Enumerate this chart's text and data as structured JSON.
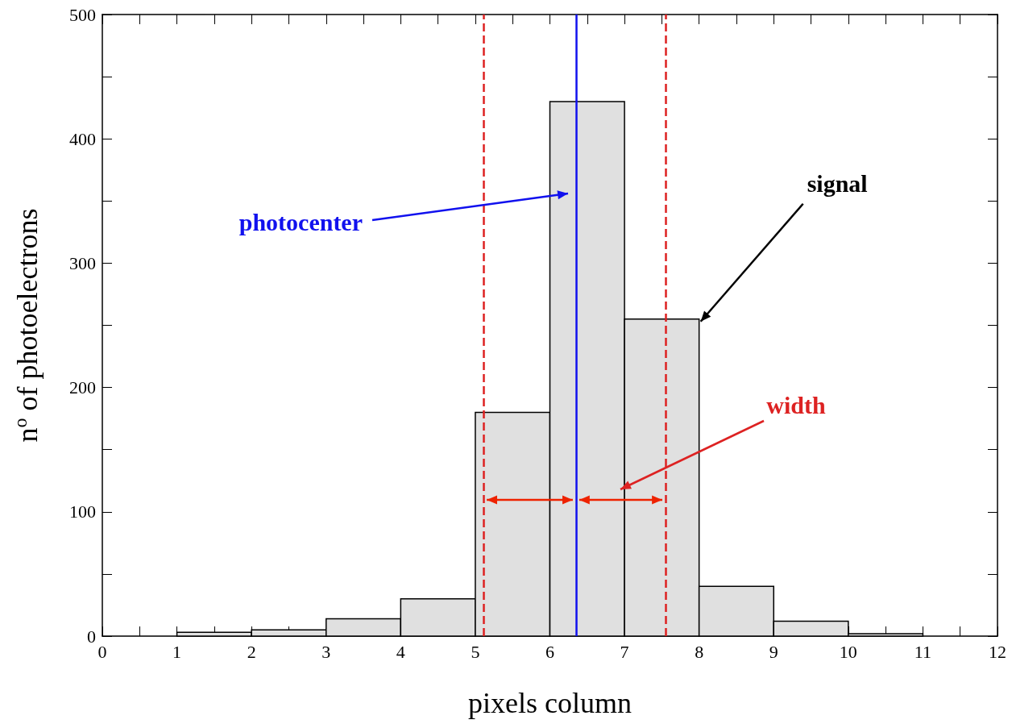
{
  "chart_data": {
    "type": "histogram",
    "xlabel": "pixels column",
    "ylabel": "n$^{o}$ of photoelectrons",
    "bins": [
      1,
      2,
      3,
      4,
      5,
      6,
      7,
      8,
      9,
      10,
      11
    ],
    "values": [
      3,
      5,
      14,
      30,
      180,
      430,
      255,
      40,
      12,
      2
    ],
    "color": "#e0e0e0",
    "xlim": [
      0,
      12
    ],
    "xticks": [
      0,
      1,
      2,
      3,
      4,
      5,
      6,
      7,
      8,
      9,
      10,
      11,
      12
    ],
    "ylim": [
      0,
      500
    ],
    "yticks": [
      0,
      100,
      200,
      300,
      400,
      500
    ],
    "grid": false,
    "ref_lines": [
      {
        "axis": "x",
        "value": 5.11,
        "label": null,
        "color": "#dd2222",
        "line_style": "dashed"
      },
      {
        "axis": "x",
        "value": 6.35,
        "label": null,
        "color": "#1111ee",
        "line_style": "solid"
      },
      {
        "axis": "x",
        "value": 7.55,
        "label": null,
        "color": "#dd2222",
        "line_style": "dashed"
      }
    ],
    "annotations": [
      "photocenter",
      {
        "text": "signal",
        "x": 8,
        "y": 255
      },
      "width"
    ]
  }
}
